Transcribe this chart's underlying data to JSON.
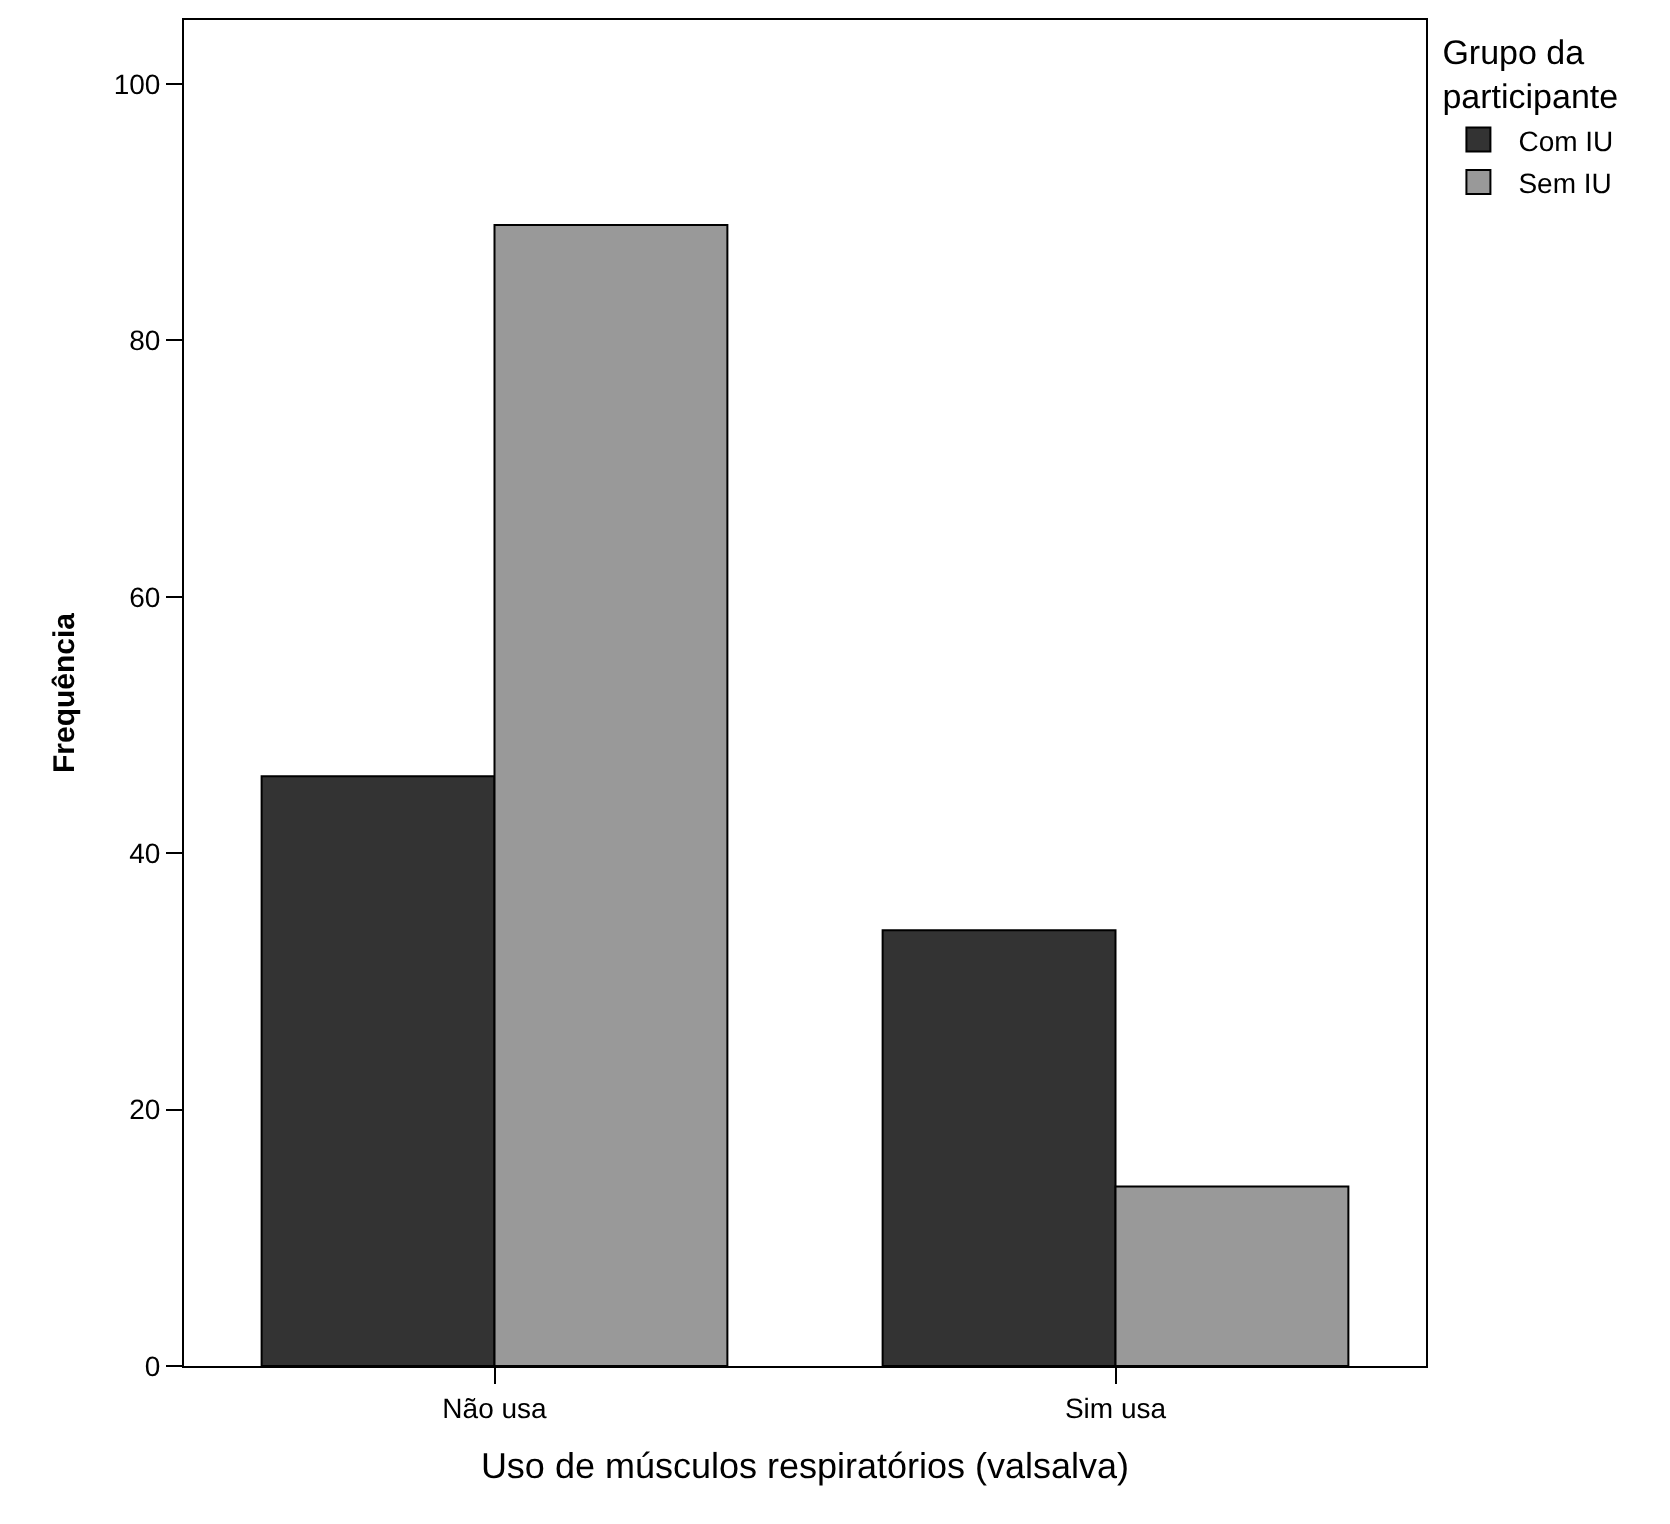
{
  "chart_data": {
    "type": "bar",
    "xlabel": "Uso de músculos respiratórios (valsalva)",
    "ylabel": "Frequência",
    "legend_title": "Grupo da participante",
    "categories": [
      "Não usa",
      "Sim usa"
    ],
    "series": [
      {
        "name": "Com IU",
        "color": "#333333",
        "values": [
          46,
          34
        ]
      },
      {
        "name": "Sem IU",
        "color": "#999999",
        "values": [
          89,
          14
        ]
      }
    ],
    "ylim": [
      0,
      105
    ],
    "yticks": [
      0,
      20,
      40,
      60,
      80,
      100
    ],
    "grid": false,
    "legend": "top right"
  }
}
